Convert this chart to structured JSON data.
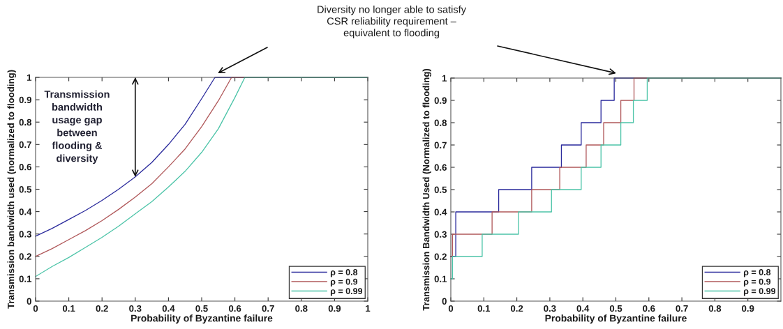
{
  "chart_data": [
    {
      "type": "line",
      "xlabel": "Probability of Byzantine failure",
      "ylabel": "Transmission bandwidth used (normalized to flooding)",
      "xlim": [
        0,
        1
      ],
      "ylim": [
        0,
        1
      ],
      "xticks": [
        0,
        0.1,
        0.2,
        0.3,
        0.4,
        0.5,
        0.6,
        0.7,
        0.8,
        0.9,
        1
      ],
      "yticks": [
        0,
        0.1,
        0.2,
        0.3,
        0.4,
        0.5,
        0.6,
        0.7,
        0.8,
        0.9,
        1
      ],
      "legend": "bottom right",
      "series": [
        {
          "name": "ρ = 0.8",
          "color": "#2a2a9c",
          "x": [
            0,
            0.05,
            0.1,
            0.15,
            0.2,
            0.25,
            0.3,
            0.35,
            0.4,
            0.45,
            0.5,
            0.54,
            1
          ],
          "values": [
            0.29,
            0.325,
            0.365,
            0.405,
            0.45,
            0.5,
            0.555,
            0.62,
            0.7,
            0.79,
            0.905,
            1,
            1
          ]
        },
        {
          "name": "ρ = 0.9",
          "color": "#b0585a",
          "x": [
            0,
            0.05,
            0.1,
            0.15,
            0.2,
            0.25,
            0.3,
            0.35,
            0.4,
            0.45,
            0.5,
            0.55,
            0.59,
            1
          ],
          "values": [
            0.2,
            0.235,
            0.275,
            0.315,
            0.36,
            0.41,
            0.465,
            0.525,
            0.6,
            0.68,
            0.78,
            0.895,
            1,
            1
          ]
        },
        {
          "name": "ρ = 0.99",
          "color": "#4cc4a8",
          "x": [
            0,
            0.05,
            0.1,
            0.15,
            0.2,
            0.25,
            0.3,
            0.35,
            0.4,
            0.45,
            0.5,
            0.55,
            0.6,
            0.63,
            1
          ],
          "values": [
            0.11,
            0.155,
            0.195,
            0.24,
            0.285,
            0.335,
            0.39,
            0.445,
            0.51,
            0.58,
            0.665,
            0.77,
            0.91,
            1,
            1
          ]
        }
      ],
      "annotations": [
        "Diversity no longer able to satisfy\nCSR reliability requirement –\nequivalent to flooding",
        {
          "text": "Transmission\nbandwidth\nusage gap\nbetween\nflooding &\ndiversity",
          "x": 0.3,
          "y": 0.555
        }
      ]
    },
    {
      "type": "step",
      "xlabel": "Probability of Byzantine failure",
      "ylabel": "Transmission Bandwidth Used (Normalized to flooding)",
      "xlim": [
        0,
        1
      ],
      "ylim": [
        0,
        1
      ],
      "xticks": [
        0,
        0.1,
        0.2,
        0.3,
        0.4,
        0.5,
        0.6,
        0.7,
        0.8,
        0.9
      ],
      "yticks": [
        0,
        0.1,
        0.2,
        0.3,
        0.4,
        0.5,
        0.6,
        0.7,
        0.8,
        0.9,
        1
      ],
      "legend": "bottom right",
      "series": [
        {
          "name": "ρ = 0.8",
          "color": "#2a2a9c",
          "x": [
            0,
            0.015,
            0.145,
            0.245,
            0.335,
            0.395,
            0.455,
            0.495,
            1
          ],
          "values": [
            0.2,
            0.4,
            0.5,
            0.6,
            0.7,
            0.8,
            0.9,
            1,
            1
          ]
        },
        {
          "name": "ρ = 0.9",
          "color": "#b0585a",
          "x": [
            0,
            0.005,
            0.125,
            0.245,
            0.33,
            0.41,
            0.463,
            0.515,
            0.555,
            1
          ],
          "values": [
            0.2,
            0.3,
            0.4,
            0.5,
            0.6,
            0.7,
            0.8,
            0.9,
            1,
            1
          ]
        },
        {
          "name": "ρ = 0.99",
          "color": "#4cc4a8",
          "x": [
            0,
            0.005,
            0.095,
            0.205,
            0.305,
            0.395,
            0.455,
            0.515,
            0.553,
            0.595,
            1
          ],
          "values": [
            0.1,
            0.2,
            0.3,
            0.4,
            0.5,
            0.6,
            0.7,
            0.8,
            0.9,
            1,
            1
          ]
        }
      ]
    }
  ]
}
